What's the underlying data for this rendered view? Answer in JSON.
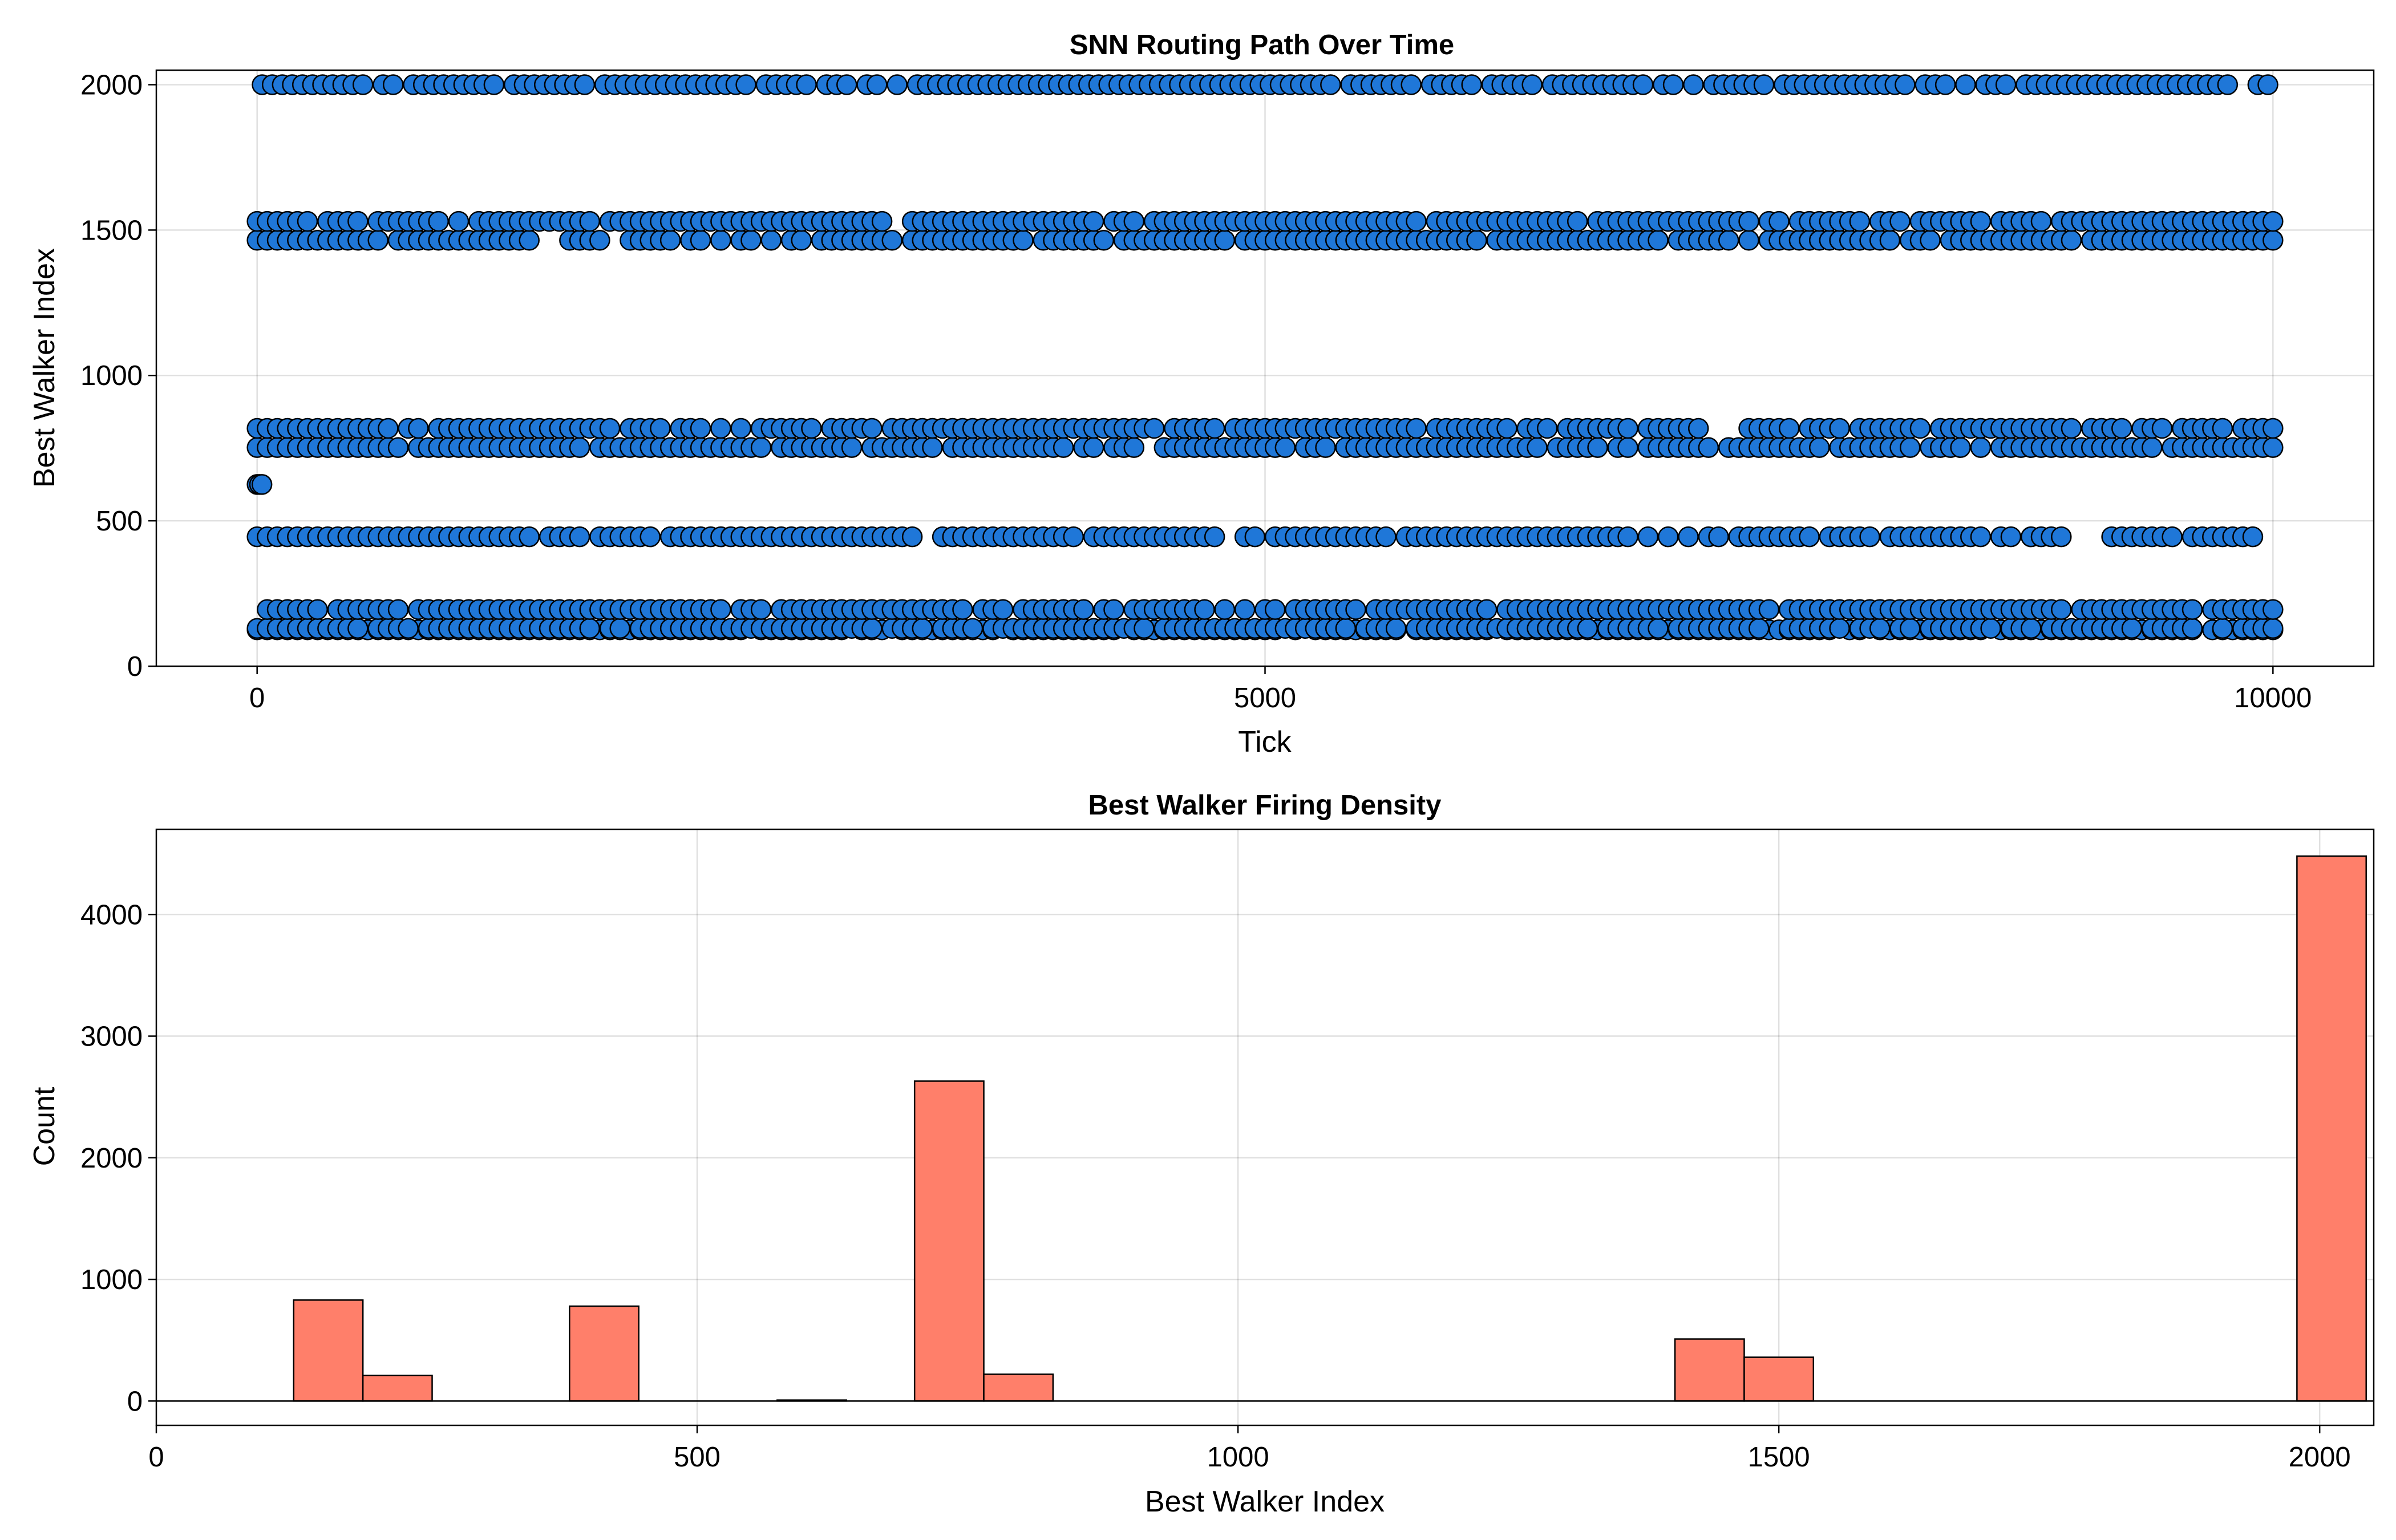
{
  "chart_data": [
    {
      "type": "scatter",
      "title": "SNN Routing Path Over Time",
      "xlabel": "Tick",
      "ylabel": "Best Walker Index",
      "xlim": [
        -500,
        10500
      ],
      "ylim": [
        0,
        2050
      ],
      "xticks": [
        0,
        5000,
        10000
      ],
      "yticks": [
        0,
        500,
        1000,
        1500,
        2000
      ],
      "grid": true,
      "colors": {
        "marker": "#1F77D8",
        "edge": "#000000"
      },
      "series": [
        {
          "values_y": 125,
          "x_range": [
            0,
            10000
          ]
        },
        {
          "values_y": 130,
          "x_range": [
            0,
            10000
          ]
        },
        {
          "values_y": 195,
          "x_range": [
            0,
            10000
          ]
        },
        {
          "values_y": 445,
          "x_range": [
            0,
            10000
          ]
        },
        {
          "values_y": 625,
          "x_range": [
            0,
            30
          ]
        },
        {
          "values_y": 752,
          "x_range": [
            0,
            10000
          ]
        },
        {
          "values_y": 818,
          "x_range": [
            0,
            10000
          ]
        },
        {
          "values_y": 1465,
          "x_range": [
            0,
            10000
          ]
        },
        {
          "values_y": 1530,
          "x_range": [
            0,
            10000
          ]
        },
        {
          "values_y": 2000,
          "x_range": [
            25,
            10000
          ]
        }
      ]
    },
    {
      "type": "bar",
      "title": "Best Walker Firing Density",
      "xlabel": "Best Walker Index",
      "ylabel": "Count",
      "xlim": [
        0,
        2050
      ],
      "ylim": [
        -200,
        4700
      ],
      "xticks": [
        0,
        500,
        1000,
        1500,
        2000
      ],
      "yticks": [
        0,
        1000,
        2000,
        3000,
        4000
      ],
      "grid": true,
      "colors": {
        "bar": "#FF7F6A",
        "edge": "#000000"
      },
      "bins": [
        {
          "x0": 127,
          "x1": 191,
          "count": 830
        },
        {
          "x0": 191,
          "x1": 255,
          "count": 210
        },
        {
          "x0": 382,
          "x1": 446,
          "count": 780
        },
        {
          "x0": 574,
          "x1": 638,
          "count": 8
        },
        {
          "x0": 701,
          "x1": 765,
          "count": 2630
        },
        {
          "x0": 765,
          "x1": 829,
          "count": 220
        },
        {
          "x0": 1404,
          "x1": 1468,
          "count": 510
        },
        {
          "x0": 1468,
          "x1": 1532,
          "count": 360
        },
        {
          "x0": 1979,
          "x1": 2043,
          "count": 4480
        }
      ]
    }
  ]
}
